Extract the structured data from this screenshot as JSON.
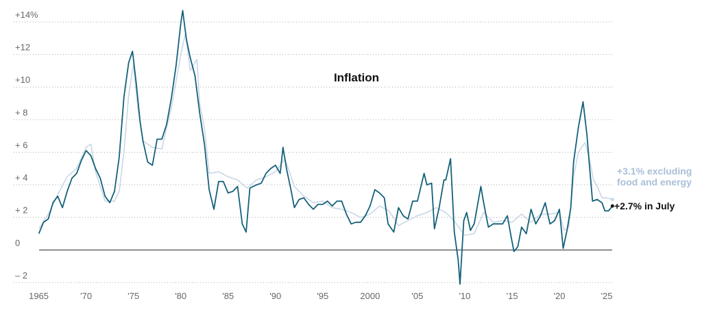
{
  "chart_data": {
    "type": "line",
    "title": "Inflation",
    "xlim": [
      1963.8,
      2026.3
    ],
    "xticks": [
      1965,
      {
        "value": 1970,
        "label": "'70"
      },
      {
        "value": 1975,
        "label": "'75"
      },
      {
        "value": 1980,
        "label": "'80"
      },
      {
        "value": 1985,
        "label": "'85"
      },
      {
        "value": 1990,
        "label": "'90"
      },
      {
        "value": 1995,
        "label": "'95"
      },
      2000,
      {
        "value": 2005,
        "label": "'05"
      },
      {
        "value": 2010,
        "label": "'10"
      },
      {
        "value": 2015,
        "label": "'15"
      },
      {
        "value": 2020,
        "label": "'20"
      },
      {
        "value": 2025,
        "label": "'25"
      }
    ],
    "ylim": [
      -2.3,
      14.8
    ],
    "yticks": [
      {
        "value": -2,
        "label": "– 2"
      },
      0,
      {
        "value": 2,
        "label": "+ 2"
      },
      {
        "value": 4,
        "label": "+ 4"
      },
      {
        "value": 6,
        "label": "+ 6"
      },
      {
        "value": 8,
        "label": "+ 8"
      },
      {
        "value": 10,
        "label": "+10"
      },
      {
        "value": 12,
        "label": "+12"
      },
      {
        "value": 14,
        "label": "+14%"
      }
    ],
    "grid": true,
    "series": [
      {
        "name": "+2.7% in July",
        "color": "#14607a",
        "x": [
          1965,
          1965.5,
          1966,
          1966.5,
          1967,
          1967.5,
          1968,
          1968.5,
          1969,
          1969.5,
          1970,
          1970.5,
          1971,
          1971.5,
          1972,
          1972.5,
          1973,
          1973.5,
          1974,
          1974.5,
          1974.9,
          1975.3,
          1975.7,
          1976,
          1976.5,
          1977,
          1977.5,
          1978,
          1978.5,
          1979,
          1979.5,
          1980,
          1980.2,
          1980.6,
          1981,
          1981.5,
          1982,
          1982.5,
          1983,
          1983.5,
          1984,
          1984.5,
          1985,
          1985.5,
          1986,
          1986.5,
          1986.9,
          1987.3,
          1988,
          1988.5,
          1989,
          1989.5,
          1990,
          1990.5,
          1990.8,
          1991.2,
          1991.6,
          1992,
          1992.5,
          1993,
          1993.5,
          1994,
          1994.5,
          1995,
          1995.5,
          1996,
          1996.5,
          1997,
          1997.5,
          1998,
          1998.5,
          1999,
          1999.5,
          2000,
          2000.5,
          2001,
          2001.5,
          2001.9,
          2002.5,
          2003,
          2003.5,
          2004,
          2004.5,
          2005,
          2005.7,
          2006,
          2006.5,
          2006.8,
          2007.3,
          2007.8,
          2008,
          2008.5,
          2008.9,
          2009.3,
          2009.5,
          2009.9,
          2010.2,
          2010.6,
          2011,
          2011.7,
          2012,
          2012.5,
          2013,
          2013.5,
          2014,
          2014.5,
          2014.9,
          2015.2,
          2015.6,
          2016,
          2016.5,
          2017,
          2017.5,
          2018,
          2018.5,
          2019,
          2019.5,
          2020,
          2020.4,
          2020.8,
          2021.2,
          2021.5,
          2022,
          2022.5,
          2022.9,
          2023.2,
          2023.5,
          2024,
          2024.5,
          2024.8,
          2025.2,
          2025.6
        ],
        "values": [
          1.0,
          1.7,
          1.9,
          2.9,
          3.3,
          2.6,
          3.6,
          4.4,
          4.7,
          5.5,
          6.1,
          5.8,
          5.0,
          4.4,
          3.3,
          2.9,
          3.6,
          5.7,
          9.4,
          11.5,
          12.2,
          10.2,
          7.9,
          6.7,
          5.4,
          5.2,
          6.8,
          6.8,
          7.7,
          9.3,
          11.3,
          13.9,
          14.7,
          12.9,
          11.8,
          10.7,
          8.4,
          6.5,
          3.7,
          2.5,
          4.2,
          4.2,
          3.5,
          3.6,
          3.9,
          1.6,
          1.1,
          3.8,
          4.0,
          4.1,
          4.7,
          5.0,
          5.2,
          4.7,
          6.3,
          4.9,
          3.8,
          2.6,
          3.1,
          3.2,
          2.8,
          2.5,
          2.8,
          2.8,
          3.0,
          2.7,
          3.0,
          3.0,
          2.2,
          1.6,
          1.7,
          1.7,
          2.1,
          2.7,
          3.7,
          3.5,
          3.2,
          1.6,
          1.1,
          2.6,
          2.1,
          1.9,
          3.0,
          3.0,
          4.7,
          4.0,
          4.1,
          1.3,
          2.6,
          4.3,
          4.3,
          5.6,
          1.1,
          -0.6,
          -2.1,
          1.8,
          2.3,
          1.2,
          1.6,
          3.9,
          2.9,
          1.4,
          1.6,
          1.6,
          1.6,
          2.1,
          0.8,
          -0.1,
          0.2,
          1.4,
          1.0,
          2.5,
          1.6,
          2.1,
          2.9,
          1.6,
          1.8,
          2.5,
          0.1,
          1.2,
          2.6,
          5.4,
          7.5,
          9.1,
          7.1,
          5.0,
          3.0,
          3.1,
          2.9,
          2.4,
          2.4,
          2.7
        ]
      },
      {
        "name": "+3.1% excluding food and energy",
        "color": "#c9d7e6",
        "x": [
          1965,
          1966,
          1967,
          1968,
          1969,
          1970,
          1970.5,
          1971,
          1972,
          1973,
          1973.5,
          1974,
          1974.5,
          1975,
          1975.5,
          1976,
          1977,
          1978,
          1978.5,
          1979,
          1980,
          1980.5,
          1981,
          1981.7,
          1982,
          1982.5,
          1983,
          1984,
          1985,
          1986,
          1987,
          1988,
          1989,
          1990,
          1991,
          1992,
          1993,
          1994,
          1995,
          1996,
          1997,
          1998,
          1999,
          2000,
          2001,
          2002,
          2003,
          2004,
          2005,
          2006,
          2007,
          2008,
          2009,
          2010,
          2011,
          2012,
          2013,
          2014,
          2015,
          2016,
          2017,
          2018,
          2019,
          2020,
          2020.5,
          2021,
          2021.5,
          2022,
          2022.7,
          2023.2,
          2023.6,
          2024,
          2024.5,
          2025,
          2025.6
        ],
        "values": [
          1.3,
          2.2,
          3.4,
          4.5,
          5.0,
          6.3,
          6.5,
          4.8,
          3.0,
          3.0,
          3.6,
          6.0,
          9.5,
          11.4,
          8.5,
          6.7,
          6.3,
          6.2,
          7.5,
          8.7,
          12.0,
          13.3,
          11.0,
          11.7,
          9.0,
          7.5,
          4.7,
          4.8,
          4.5,
          4.3,
          3.8,
          4.3,
          4.5,
          4.8,
          5.6,
          3.9,
          3.3,
          2.9,
          3.0,
          2.6,
          2.5,
          2.3,
          2.0,
          2.2,
          2.7,
          2.4,
          1.5,
          1.8,
          2.1,
          2.3,
          2.6,
          2.3,
          1.7,
          0.9,
          1.0,
          2.3,
          1.7,
          1.8,
          1.7,
          2.2,
          1.7,
          2.2,
          2.2,
          2.3,
          1.2,
          1.4,
          4.5,
          6.0,
          6.6,
          5.5,
          4.3,
          3.9,
          3.2,
          3.2,
          3.1
        ]
      }
    ]
  }
}
